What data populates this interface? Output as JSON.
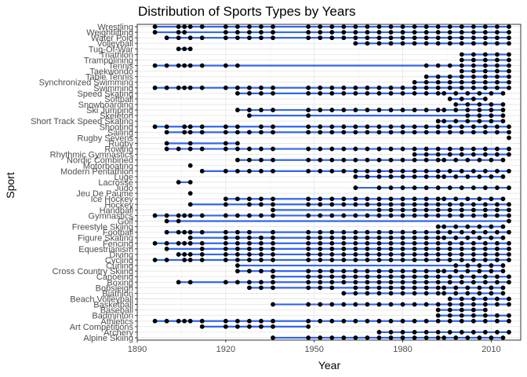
{
  "chart_data": {
    "type": "scatter",
    "title": "Distribution of Sports Types by Years",
    "xlabel": "Year",
    "ylabel": "Sport",
    "xlim": [
      1890,
      2020
    ],
    "xticks": [
      1890,
      1920,
      1950,
      1980,
      2010
    ],
    "colors": {
      "line": "#3366ee",
      "point": "#000000"
    },
    "series": [
      {
        "name": "Alpine Skiing",
        "years": [
          1936,
          1948,
          1952,
          1956,
          1960,
          1964,
          1968,
          1972,
          1976,
          1980,
          1984,
          1988,
          1992,
          1994,
          1998,
          2002,
          2006,
          2010,
          2014
        ]
      },
      {
        "name": "Archery",
        "years": [
          1972,
          1976,
          1980,
          1984,
          1988,
          1992,
          1996,
          2000,
          2004,
          2008,
          2012,
          2016
        ]
      },
      {
        "name": "Art Competitions",
        "years": [
          1912,
          1920,
          1924,
          1928,
          1932,
          1936,
          1948
        ]
      },
      {
        "name": "Athletics",
        "years": [
          1896,
          1900,
          1904,
          1906,
          1908,
          1912,
          1920,
          1924,
          1928,
          1932,
          1936,
          1948,
          1952,
          1956,
          1960,
          1964,
          1968,
          1972,
          1976,
          1980,
          1984,
          1988,
          1992,
          1996,
          2000,
          2004,
          2008,
          2012,
          2016
        ]
      },
      {
        "name": "Badminton",
        "years": [
          1992,
          1996,
          2000,
          2004,
          2008,
          2012,
          2016
        ]
      },
      {
        "name": "Baseball",
        "years": [
          1992,
          1996,
          2000,
          2004,
          2008
        ]
      },
      {
        "name": "Basketball",
        "years": [
          1936,
          1948,
          1952,
          1956,
          1960,
          1964,
          1968,
          1972,
          1976,
          1980,
          1984,
          1988,
          1992,
          1996,
          2000,
          2004,
          2008,
          2012,
          2016
        ]
      },
      {
        "name": "Beach Volleyball",
        "years": [
          1996,
          2000,
          2004,
          2008,
          2012,
          2016
        ]
      },
      {
        "name": "Biathlon",
        "years": [
          1960,
          1964,
          1968,
          1972,
          1976,
          1980,
          1984,
          1988,
          1992,
          1994,
          1998,
          2002,
          2006,
          2010,
          2014
        ]
      },
      {
        "name": "Bobsleigh",
        "years": [
          1928,
          1932,
          1936,
          1948,
          1952,
          1956,
          1964,
          1968,
          1972,
          1976,
          1980,
          1984,
          1988,
          1992,
          1994,
          1998,
          2002,
          2006,
          2010,
          2014
        ]
      },
      {
        "name": "Boxing",
        "years": [
          1904,
          1908,
          1920,
          1924,
          1928,
          1932,
          1936,
          1948,
          1952,
          1956,
          1960,
          1964,
          1968,
          1972,
          1976,
          1980,
          1984,
          1988,
          1992,
          1996,
          2000,
          2004,
          2008,
          2012,
          2016
        ]
      },
      {
        "name": "Canoeing",
        "years": [
          1936,
          1948,
          1952,
          1956,
          1960,
          1964,
          1968,
          1972,
          1976,
          1980,
          1984,
          1988,
          1992,
          1996,
          2000,
          2004,
          2008,
          2012,
          2016
        ]
      },
      {
        "name": "Cross Country Skiing",
        "years": [
          1924,
          1928,
          1932,
          1936,
          1948,
          1952,
          1956,
          1960,
          1964,
          1968,
          1972,
          1976,
          1980,
          1984,
          1988,
          1992,
          1994,
          1998,
          2002,
          2006,
          2010,
          2014
        ]
      },
      {
        "name": "Curling",
        "years": [
          1924,
          1998,
          2002,
          2006,
          2010,
          2014
        ]
      },
      {
        "name": "Cycling",
        "years": [
          1896,
          1900,
          1906,
          1908,
          1912,
          1920,
          1924,
          1928,
          1932,
          1936,
          1948,
          1952,
          1956,
          1960,
          1964,
          1968,
          1972,
          1976,
          1980,
          1984,
          1988,
          1992,
          1996,
          2000,
          2004,
          2008,
          2012,
          2016
        ]
      },
      {
        "name": "Diving",
        "years": [
          1904,
          1906,
          1908,
          1912,
          1920,
          1924,
          1928,
          1932,
          1936,
          1948,
          1952,
          1956,
          1960,
          1964,
          1968,
          1972,
          1976,
          1980,
          1984,
          1988,
          1992,
          1996,
          2000,
          2004,
          2008,
          2012,
          2016
        ]
      },
      {
        "name": "Equestrianism",
        "years": [
          1900,
          1912,
          1920,
          1924,
          1928,
          1932,
          1936,
          1948,
          1952,
          1956,
          1960,
          1964,
          1968,
          1972,
          1976,
          1980,
          1984,
          1988,
          1992,
          1996,
          2000,
          2004,
          2008,
          2012,
          2016
        ]
      },
      {
        "name": "Fencing",
        "years": [
          1896,
          1900,
          1904,
          1906,
          1908,
          1912,
          1920,
          1924,
          1928,
          1932,
          1936,
          1948,
          1952,
          1956,
          1960,
          1964,
          1968,
          1972,
          1976,
          1980,
          1984,
          1988,
          1992,
          1996,
          2000,
          2004,
          2008,
          2012,
          2016
        ]
      },
      {
        "name": "Figure Skating",
        "years": [
          1908,
          1920,
          1924,
          1928,
          1932,
          1936,
          1948,
          1952,
          1956,
          1960,
          1964,
          1968,
          1972,
          1976,
          1980,
          1984,
          1988,
          1992,
          1994,
          1998,
          2002,
          2006,
          2010,
          2014
        ]
      },
      {
        "name": "Football",
        "years": [
          1900,
          1904,
          1906,
          1908,
          1912,
          1920,
          1924,
          1928,
          1936,
          1948,
          1952,
          1956,
          1960,
          1964,
          1968,
          1972,
          1976,
          1980,
          1984,
          1988,
          1992,
          1996,
          2000,
          2004,
          2008,
          2012,
          2016
        ]
      },
      {
        "name": "Freestyle Skiing",
        "years": [
          1992,
          1994,
          1998,
          2002,
          2006,
          2010,
          2014
        ]
      },
      {
        "name": "Golf",
        "years": [
          1900,
          1904,
          2016
        ]
      },
      {
        "name": "Gymnastics",
        "years": [
          1896,
          1900,
          1904,
          1906,
          1908,
          1912,
          1920,
          1924,
          1928,
          1932,
          1936,
          1948,
          1952,
          1956,
          1960,
          1964,
          1968,
          1972,
          1976,
          1980,
          1984,
          1988,
          1992,
          1996,
          2000,
          2004,
          2008,
          2012,
          2016
        ]
      },
      {
        "name": "Handball",
        "years": [
          1936,
          1972,
          1976,
          1980,
          1984,
          1988,
          1992,
          1996,
          2000,
          2004,
          2008,
          2012,
          2016
        ]
      },
      {
        "name": "Hockey",
        "years": [
          1908,
          1920,
          1928,
          1932,
          1936,
          1948,
          1952,
          1956,
          1960,
          1964,
          1968,
          1972,
          1976,
          1980,
          1984,
          1988,
          1992,
          1996,
          2000,
          2004,
          2008,
          2012,
          2016
        ]
      },
      {
        "name": "Ice Hockey",
        "years": [
          1920,
          1924,
          1928,
          1932,
          1936,
          1948,
          1952,
          1956,
          1960,
          1964,
          1968,
          1972,
          1976,
          1980,
          1984,
          1988,
          1992,
          1994,
          1998,
          2002,
          2006,
          2010,
          2014
        ]
      },
      {
        "name": "Jeu De Paume",
        "years": [
          1908
        ]
      },
      {
        "name": "Judo",
        "years": [
          1964,
          1972,
          1976,
          1980,
          1984,
          1988,
          1992,
          1996,
          2000,
          2004,
          2008,
          2012,
          2016
        ]
      },
      {
        "name": "Lacrosse",
        "years": [
          1904,
          1908
        ]
      },
      {
        "name": "Luge",
        "years": [
          1964,
          1968,
          1972,
          1976,
          1980,
          1984,
          1988,
          1992,
          1994,
          1998,
          2002,
          2006,
          2010,
          2014
        ]
      },
      {
        "name": "Modern Pentathlon",
        "years": [
          1912,
          1920,
          1924,
          1928,
          1932,
          1936,
          1948,
          1952,
          1956,
          1960,
          1964,
          1968,
          1972,
          1976,
          1980,
          1984,
          1988,
          1992,
          1996,
          2000,
          2004,
          2008,
          2012,
          2016
        ]
      },
      {
        "name": "Motorboating",
        "years": [
          1908
        ]
      },
      {
        "name": "Nordic Combined",
        "years": [
          1924,
          1928,
          1932,
          1936,
          1948,
          1952,
          1956,
          1960,
          1964,
          1968,
          1972,
          1976,
          1980,
          1984,
          1988,
          1992,
          1994,
          1998,
          2002,
          2006,
          2010,
          2014
        ]
      },
      {
        "name": "Rhythmic Gymnastics",
        "years": [
          1984,
          1988,
          1992,
          1996,
          2000,
          2004,
          2008,
          2012,
          2016
        ]
      },
      {
        "name": "Rowing",
        "years": [
          1900,
          1904,
          1908,
          1912,
          1920,
          1924,
          1928,
          1932,
          1936,
          1948,
          1952,
          1956,
          1960,
          1964,
          1968,
          1972,
          1976,
          1980,
          1984,
          1988,
          1992,
          1996,
          2000,
          2004,
          2008,
          2012,
          2016
        ]
      },
      {
        "name": "Rugby",
        "years": [
          1900,
          1908,
          1920,
          1924
        ]
      },
      {
        "name": "Rugby Sevens",
        "years": [
          2016
        ]
      },
      {
        "name": "Sailing",
        "years": [
          1900,
          1906,
          1908,
          1912,
          1920,
          1924,
          1928,
          1932,
          1936,
          1948,
          1952,
          1956,
          1960,
          1964,
          1968,
          1972,
          1976,
          1980,
          1984,
          1988,
          1992,
          1996,
          2000,
          2004,
          2008,
          2012,
          2016
        ]
      },
      {
        "name": "Shooting",
        "years": [
          1896,
          1900,
          1906,
          1908,
          1912,
          1920,
          1924,
          1932,
          1936,
          1948,
          1952,
          1956,
          1960,
          1964,
          1968,
          1972,
          1976,
          1980,
          1984,
          1988,
          1992,
          1996,
          2000,
          2004,
          2008,
          2012,
          2016
        ]
      },
      {
        "name": "Short Track Speed Skating",
        "years": [
          1992,
          1994,
          1998,
          2002,
          2006,
          2010,
          2014
        ]
      },
      {
        "name": "Skeleton",
        "years": [
          1928,
          1948,
          2002,
          2006,
          2010,
          2014
        ]
      },
      {
        "name": "Ski Jumping",
        "years": [
          1924,
          1928,
          1932,
          1936,
          1948,
          1952,
          1956,
          1960,
          1964,
          1968,
          1972,
          1976,
          1980,
          1984,
          1988,
          1992,
          1994,
          1998,
          2002,
          2006,
          2010,
          2014
        ]
      },
      {
        "name": "Snowboarding",
        "years": [
          1998,
          2002,
          2006,
          2010,
          2014
        ]
      },
      {
        "name": "Softball",
        "years": [
          1996,
          2000,
          2004,
          2008
        ]
      },
      {
        "name": "Speed Skating",
        "years": [
          1924,
          1928,
          1932,
          1936,
          1948,
          1952,
          1956,
          1960,
          1964,
          1968,
          1972,
          1976,
          1980,
          1984,
          1988,
          1992,
          1994,
          1998,
          2002,
          2006,
          2010,
          2014
        ]
      },
      {
        "name": "Swimming",
        "years": [
          1896,
          1900,
          1904,
          1906,
          1908,
          1912,
          1920,
          1924,
          1928,
          1932,
          1936,
          1948,
          1952,
          1956,
          1960,
          1964,
          1968,
          1972,
          1976,
          1980,
          1984,
          1988,
          1992,
          1996,
          2000,
          2004,
          2008,
          2012,
          2016
        ]
      },
      {
        "name": "Synchronized Swimming",
        "years": [
          1984,
          1988,
          1992,
          1996,
          2000,
          2004,
          2008,
          2012,
          2016
        ]
      },
      {
        "name": "Table Tennis",
        "years": [
          1988,
          1992,
          1996,
          2000,
          2004,
          2008,
          2012,
          2016
        ]
      },
      {
        "name": "Taekwondo",
        "years": [
          2000,
          2004,
          2008,
          2012,
          2016
        ]
      },
      {
        "name": "Tennis",
        "years": [
          1896,
          1900,
          1904,
          1906,
          1908,
          1912,
          1920,
          1924,
          1988,
          1992,
          1996,
          2000,
          2004,
          2008,
          2012,
          2016
        ]
      },
      {
        "name": "Trampolining",
        "years": [
          2000,
          2004,
          2008,
          2012,
          2016
        ]
      },
      {
        "name": "Triathlon",
        "years": [
          2000,
          2004,
          2008,
          2012,
          2016
        ]
      },
      {
        "name": "Tug-Of-War",
        "years": [
          1904,
          1906,
          1908
        ]
      },
      {
        "name": "Volleyball",
        "years": [
          1964,
          1968,
          1972,
          1976,
          1980,
          1984,
          1988,
          1992,
          1996,
          2000,
          2004,
          2008,
          2012,
          2016
        ]
      },
      {
        "name": "Water Polo",
        "years": [
          1900,
          1904,
          1908,
          1912,
          1920,
          1924,
          1928,
          1932,
          1936,
          1948,
          1952,
          1956,
          1960,
          1964,
          1968,
          1972,
          1976,
          1980,
          1984,
          1988,
          1992,
          1996,
          2000,
          2004,
          2008,
          2012,
          2016
        ]
      },
      {
        "name": "Weightlifting",
        "years": [
          1896,
          1904,
          1906,
          1920,
          1924,
          1928,
          1932,
          1936,
          1948,
          1952,
          1956,
          1960,
          1964,
          1968,
          1972,
          1976,
          1980,
          1984,
          1988,
          1992,
          1996,
          2000,
          2004,
          2008,
          2012,
          2016
        ]
      },
      {
        "name": "Wrestling",
        "years": [
          1896,
          1904,
          1906,
          1908,
          1912,
          1920,
          1924,
          1928,
          1932,
          1936,
          1948,
          1952,
          1956,
          1960,
          1964,
          1968,
          1972,
          1976,
          1980,
          1984,
          1988,
          1992,
          1996,
          2000,
          2004,
          2008,
          2012,
          2016
        ]
      }
    ]
  }
}
